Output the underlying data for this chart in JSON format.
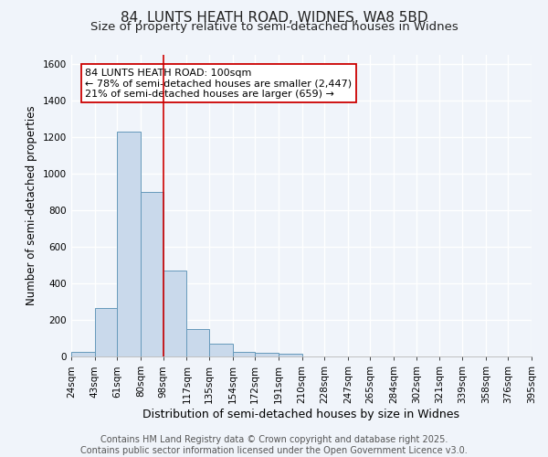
{
  "title": "84, LUNTS HEATH ROAD, WIDNES, WA8 5BD",
  "subtitle": "Size of property relative to semi-detached houses in Widnes",
  "xlabel": "Distribution of semi-detached houses by size in Widnes",
  "ylabel": "Number of semi-detached properties",
  "bins": [
    24,
    43,
    61,
    80,
    98,
    117,
    135,
    154,
    172,
    191,
    210,
    228,
    247,
    265,
    284,
    302,
    321,
    339,
    358,
    376,
    395
  ],
  "heights": [
    25,
    265,
    1230,
    900,
    470,
    150,
    70,
    25,
    20,
    15,
    0,
    0,
    0,
    0,
    0,
    0,
    0,
    0,
    0,
    0
  ],
  "bar_color": "#c9d9eb",
  "bar_edge_color": "#6699bb",
  "red_line_x": 98,
  "annotation_title": "84 LUNTS HEATH ROAD: 100sqm",
  "annotation_line1": "← 78% of semi-detached houses are smaller (2,447)",
  "annotation_line2": "21% of semi-detached houses are larger (659) →",
  "annotation_box_color": "#ffffff",
  "annotation_box_edge": "#cc0000",
  "red_line_color": "#cc0000",
  "ylim": [
    0,
    1650
  ],
  "yticks": [
    0,
    200,
    400,
    600,
    800,
    1000,
    1200,
    1400,
    1600
  ],
  "footer_line1": "Contains HM Land Registry data © Crown copyright and database right 2025.",
  "footer_line2": "Contains public sector information licensed under the Open Government Licence v3.0.",
  "bg_color": "#f0f4fa",
  "grid_color": "#ffffff",
  "title_fontsize": 11,
  "subtitle_fontsize": 9.5,
  "xlabel_fontsize": 9,
  "ylabel_fontsize": 8.5,
  "tick_fontsize": 7.5,
  "annotation_fontsize": 8,
  "footer_fontsize": 7
}
